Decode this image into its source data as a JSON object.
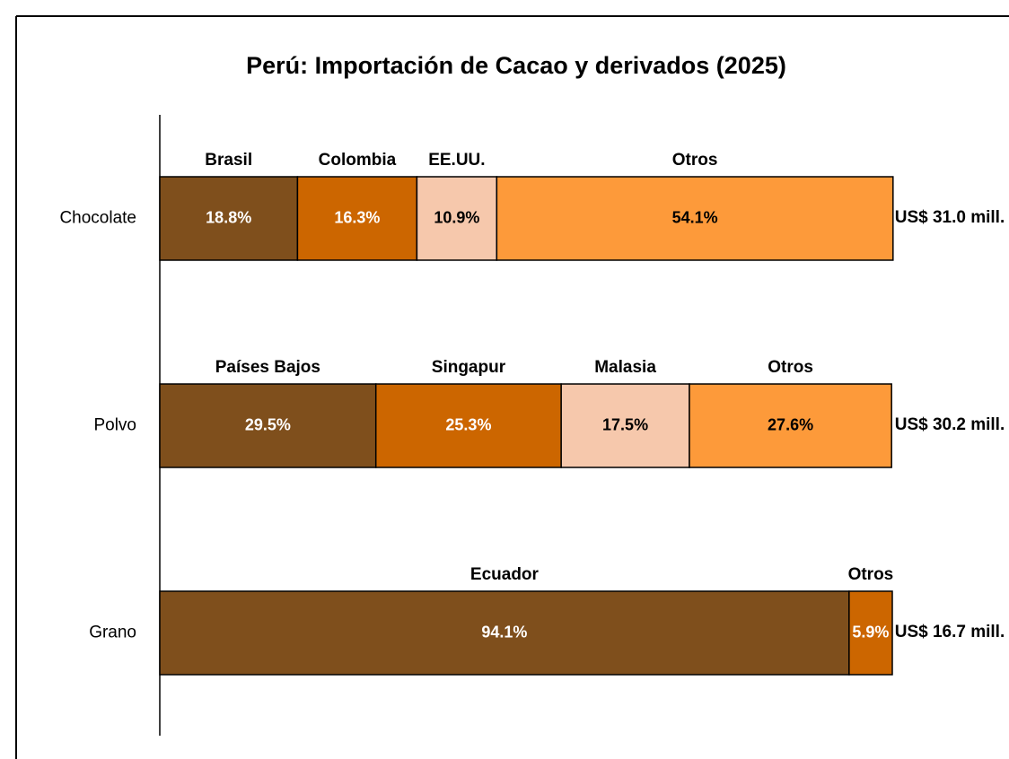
{
  "chart_data": {
    "type": "stacked_bar_100",
    "title": "Perú: Importación de Cacao y derivados (2025)",
    "xlim": [
      0,
      100
    ],
    "rows": [
      {
        "category": "Chocolate",
        "total_label": "US$ 31.0 mill.",
        "segments": [
          {
            "name": "Brasil",
            "value": 18.8,
            "value_label": "18.8%",
            "color": "#7f4f1c"
          },
          {
            "name": "Colombia",
            "value": 16.3,
            "value_label": "16.3%",
            "color": "#cc6600"
          },
          {
            "name": "EE.UU.",
            "value": 10.9,
            "value_label": "10.9%",
            "color": "#f6c8ac"
          },
          {
            "name": "Otros",
            "value": 54.1,
            "value_label": "54.1%",
            "color": "#fd9a3a"
          }
        ]
      },
      {
        "category": "Polvo",
        "total_label": "US$ 30.2 mill.",
        "segments": [
          {
            "name": "Países Bajos",
            "value": 29.5,
            "value_label": "29.5%",
            "color": "#7f4f1c"
          },
          {
            "name": "Singapur",
            "value": 25.3,
            "value_label": "25.3%",
            "color": "#cc6600"
          },
          {
            "name": "Malasia",
            "value": 17.5,
            "value_label": "17.5%",
            "color": "#f6c8ac"
          },
          {
            "name": "Otros",
            "value": 27.6,
            "value_label": "27.6%",
            "color": "#fd9a3a"
          }
        ]
      },
      {
        "category": "Grano",
        "total_label": "US$ 16.7 mill.",
        "segments": [
          {
            "name": "Ecuador",
            "value": 94.1,
            "value_label": "94.1%",
            "color": "#7f4f1c"
          },
          {
            "name": "Otros",
            "value": 5.9,
            "value_label": "5.9%",
            "color": "#cc6600"
          }
        ]
      }
    ]
  }
}
